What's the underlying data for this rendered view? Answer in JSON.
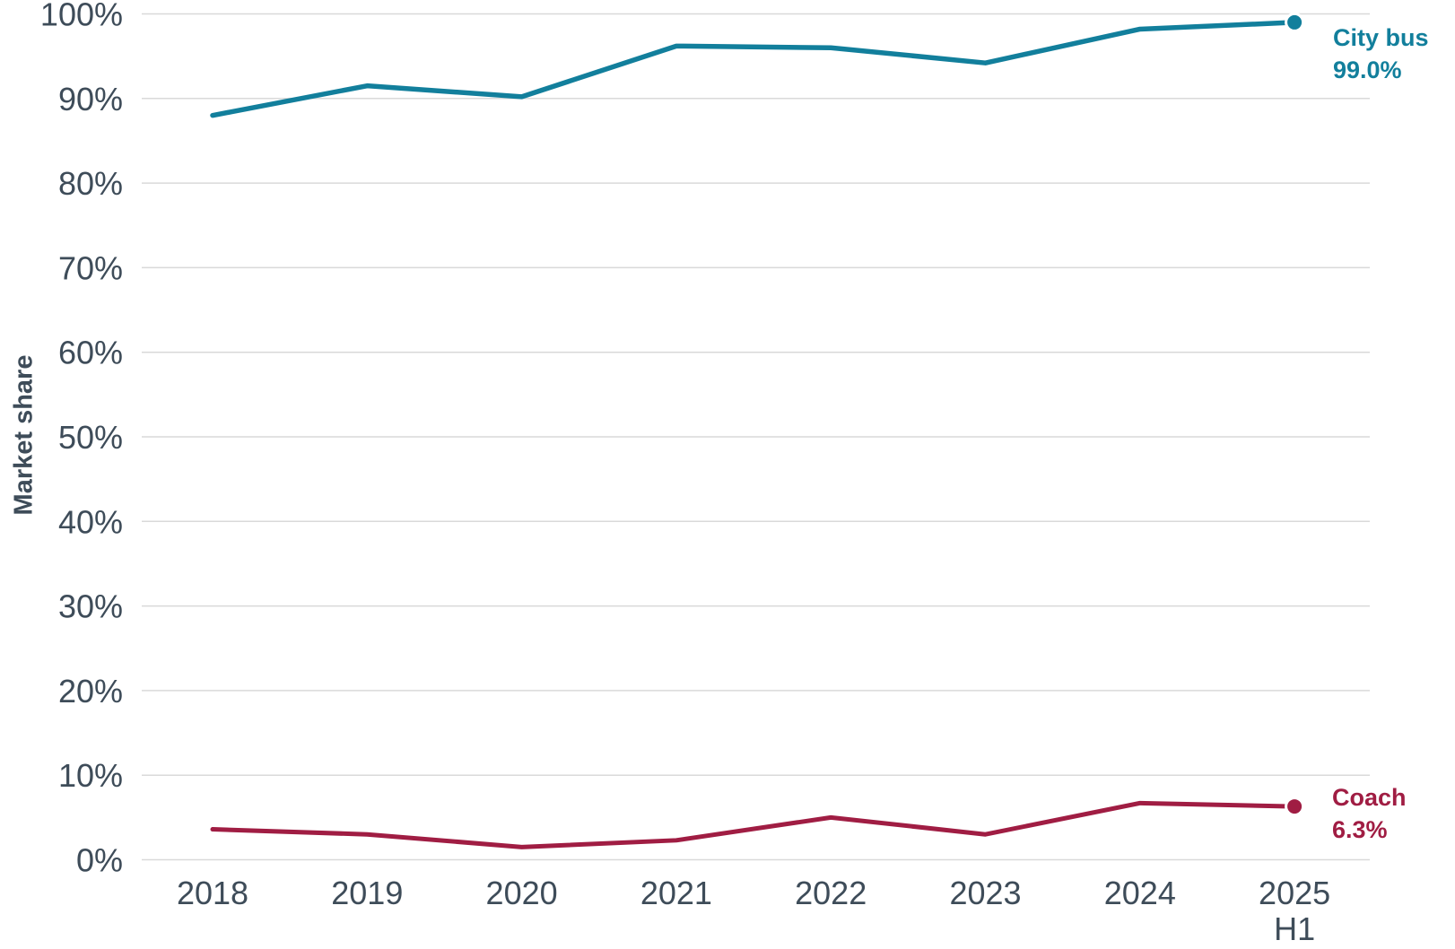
{
  "chart_data": {
    "type": "line",
    "title": "",
    "ylabel": "Market share",
    "xlabel": "",
    "ylim": [
      0,
      100
    ],
    "ytick_step": 10,
    "ytick_labels": [
      "0%",
      "10%",
      "20%",
      "30%",
      "40%",
      "50%",
      "60%",
      "70%",
      "80%",
      "90%",
      "100%"
    ],
    "grid": true,
    "legend_position": "line-end-right",
    "categories": [
      "2018",
      "2019",
      "2020",
      "2021",
      "2022",
      "2023",
      "2024",
      "2025 H1"
    ],
    "x_tick_lines": [
      [
        "2018"
      ],
      [
        "2019"
      ],
      [
        "2020"
      ],
      [
        "2021"
      ],
      [
        "2022"
      ],
      [
        "2023"
      ],
      [
        "2024"
      ],
      [
        "2025",
        "H1"
      ]
    ],
    "series": [
      {
        "name": "City bus",
        "color": "#127f9c",
        "values": [
          88.0,
          91.5,
          90.2,
          96.2,
          96.0,
          94.2,
          98.2,
          99.0
        ],
        "end_value_label": "99.0%"
      },
      {
        "name": "Coach",
        "color": "#a01d43",
        "values": [
          3.6,
          3.0,
          1.5,
          2.3,
          5.0,
          3.0,
          6.7,
          6.3
        ],
        "end_value_label": "6.3%"
      }
    ],
    "colors": {
      "axis_text": "#3e4c59",
      "grid": "#d9d9d9",
      "background": "#ffffff"
    }
  }
}
